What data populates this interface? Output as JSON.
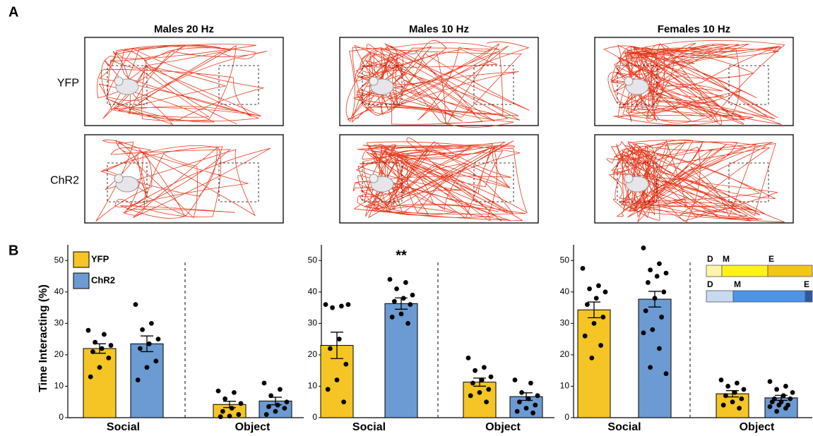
{
  "panel_labels": [
    "A",
    "B"
  ],
  "panel_a": {
    "titles": [
      "Males 20 Hz",
      "Males 10 Hz",
      "Females 10 Hz"
    ],
    "rows": [
      "YFP",
      "ChR2"
    ]
  },
  "chart_data": [
    {
      "type": "bar",
      "y_label": "Time Interacting (%)",
      "categories": [
        "Social",
        "Object"
      ],
      "ylim": [
        0,
        55
      ],
      "yticks": [
        0,
        10,
        20,
        30,
        40,
        50
      ],
      "series": [
        {
          "name": "YFP",
          "color": "#f4c524",
          "values": [
            22,
            4.2
          ],
          "errors": [
            1.5,
            1
          ],
          "points": [
            [
              27.8,
              26.5,
              24,
              23,
              22,
              21,
              19,
              16,
              13
            ],
            [
              8.5,
              8,
              6,
              4.5,
              3,
              2,
              1,
              0.5,
              0.3
            ]
          ]
        },
        {
          "name": "ChR2",
          "color": "#6b9bd2",
          "values": [
            23.5,
            5.3
          ],
          "errors": [
            2.5,
            1.2
          ],
          "points": [
            [
              36,
              30,
              28,
              25,
              23.5,
              22,
              18,
              16,
              12
            ],
            [
              11,
              9,
              7,
              5,
              4,
              3.5,
              3,
              2,
              1
            ]
          ]
        }
      ]
    },
    {
      "type": "bar",
      "categories": [
        "Social",
        "Object"
      ],
      "annotation": "**",
      "ylim": [
        0,
        55
      ],
      "yticks": [
        0,
        10,
        20,
        30,
        40,
        50
      ],
      "series": [
        {
          "color": "#f4c524",
          "values": [
            23,
            11.3
          ],
          "errors": [
            4.2,
            1.3
          ],
          "points": [
            [
              36,
              35.5,
              35,
              36,
              25,
              22,
              17,
              12,
              9,
              5
            ],
            [
              19,
              16,
              15,
              13,
              12,
              11,
              9,
              8,
              7,
              5
            ]
          ]
        },
        {
          "color": "#6b9bd2",
          "values": [
            36.3,
            6.7
          ],
          "errors": [
            1.8,
            1.2
          ],
          "points": [
            [
              44,
              43,
              41,
              39,
              38,
              37,
              36,
              33,
              32,
              30
            ],
            [
              12,
              11,
              8,
              7,
              6,
              5,
              4,
              3,
              2,
              1.5
            ]
          ]
        }
      ]
    },
    {
      "type": "bar",
      "categories": [
        "Social",
        "Object"
      ],
      "inset": [
        [
          "D",
          "M",
          "E"
        ],
        [
          "D",
          "M",
          "E"
        ]
      ],
      "ylim": [
        0,
        55
      ],
      "yticks": [
        0,
        10,
        20,
        30,
        40,
        50
      ],
      "series": [
        {
          "color": "#f4c524",
          "values": [
            34.3,
            7.6
          ],
          "errors": [
            2.5,
            1
          ],
          "points": [
            [
              47.5,
              42,
              41,
              40,
              38,
              36,
              32,
              30,
              26,
              23,
              19
            ],
            [
              12,
              11,
              10,
              9,
              8,
              7,
              6,
              5,
              4,
              3
            ]
          ]
        },
        {
          "color": "#6b9bd2",
          "values": [
            37.7,
            6.3
          ],
          "errors": [
            2.5,
            0.8
          ],
          "points": [
            [
              54,
              49,
              47,
              46,
              45,
              43,
              40,
              38,
              34,
              32,
              28,
              27,
              22,
              16,
              14
            ],
            [
              11.5,
              10,
              9,
              8,
              7,
              6,
              6,
              5,
              5,
              4,
              4,
              3.5,
              3,
              2
            ]
          ]
        }
      ]
    }
  ]
}
